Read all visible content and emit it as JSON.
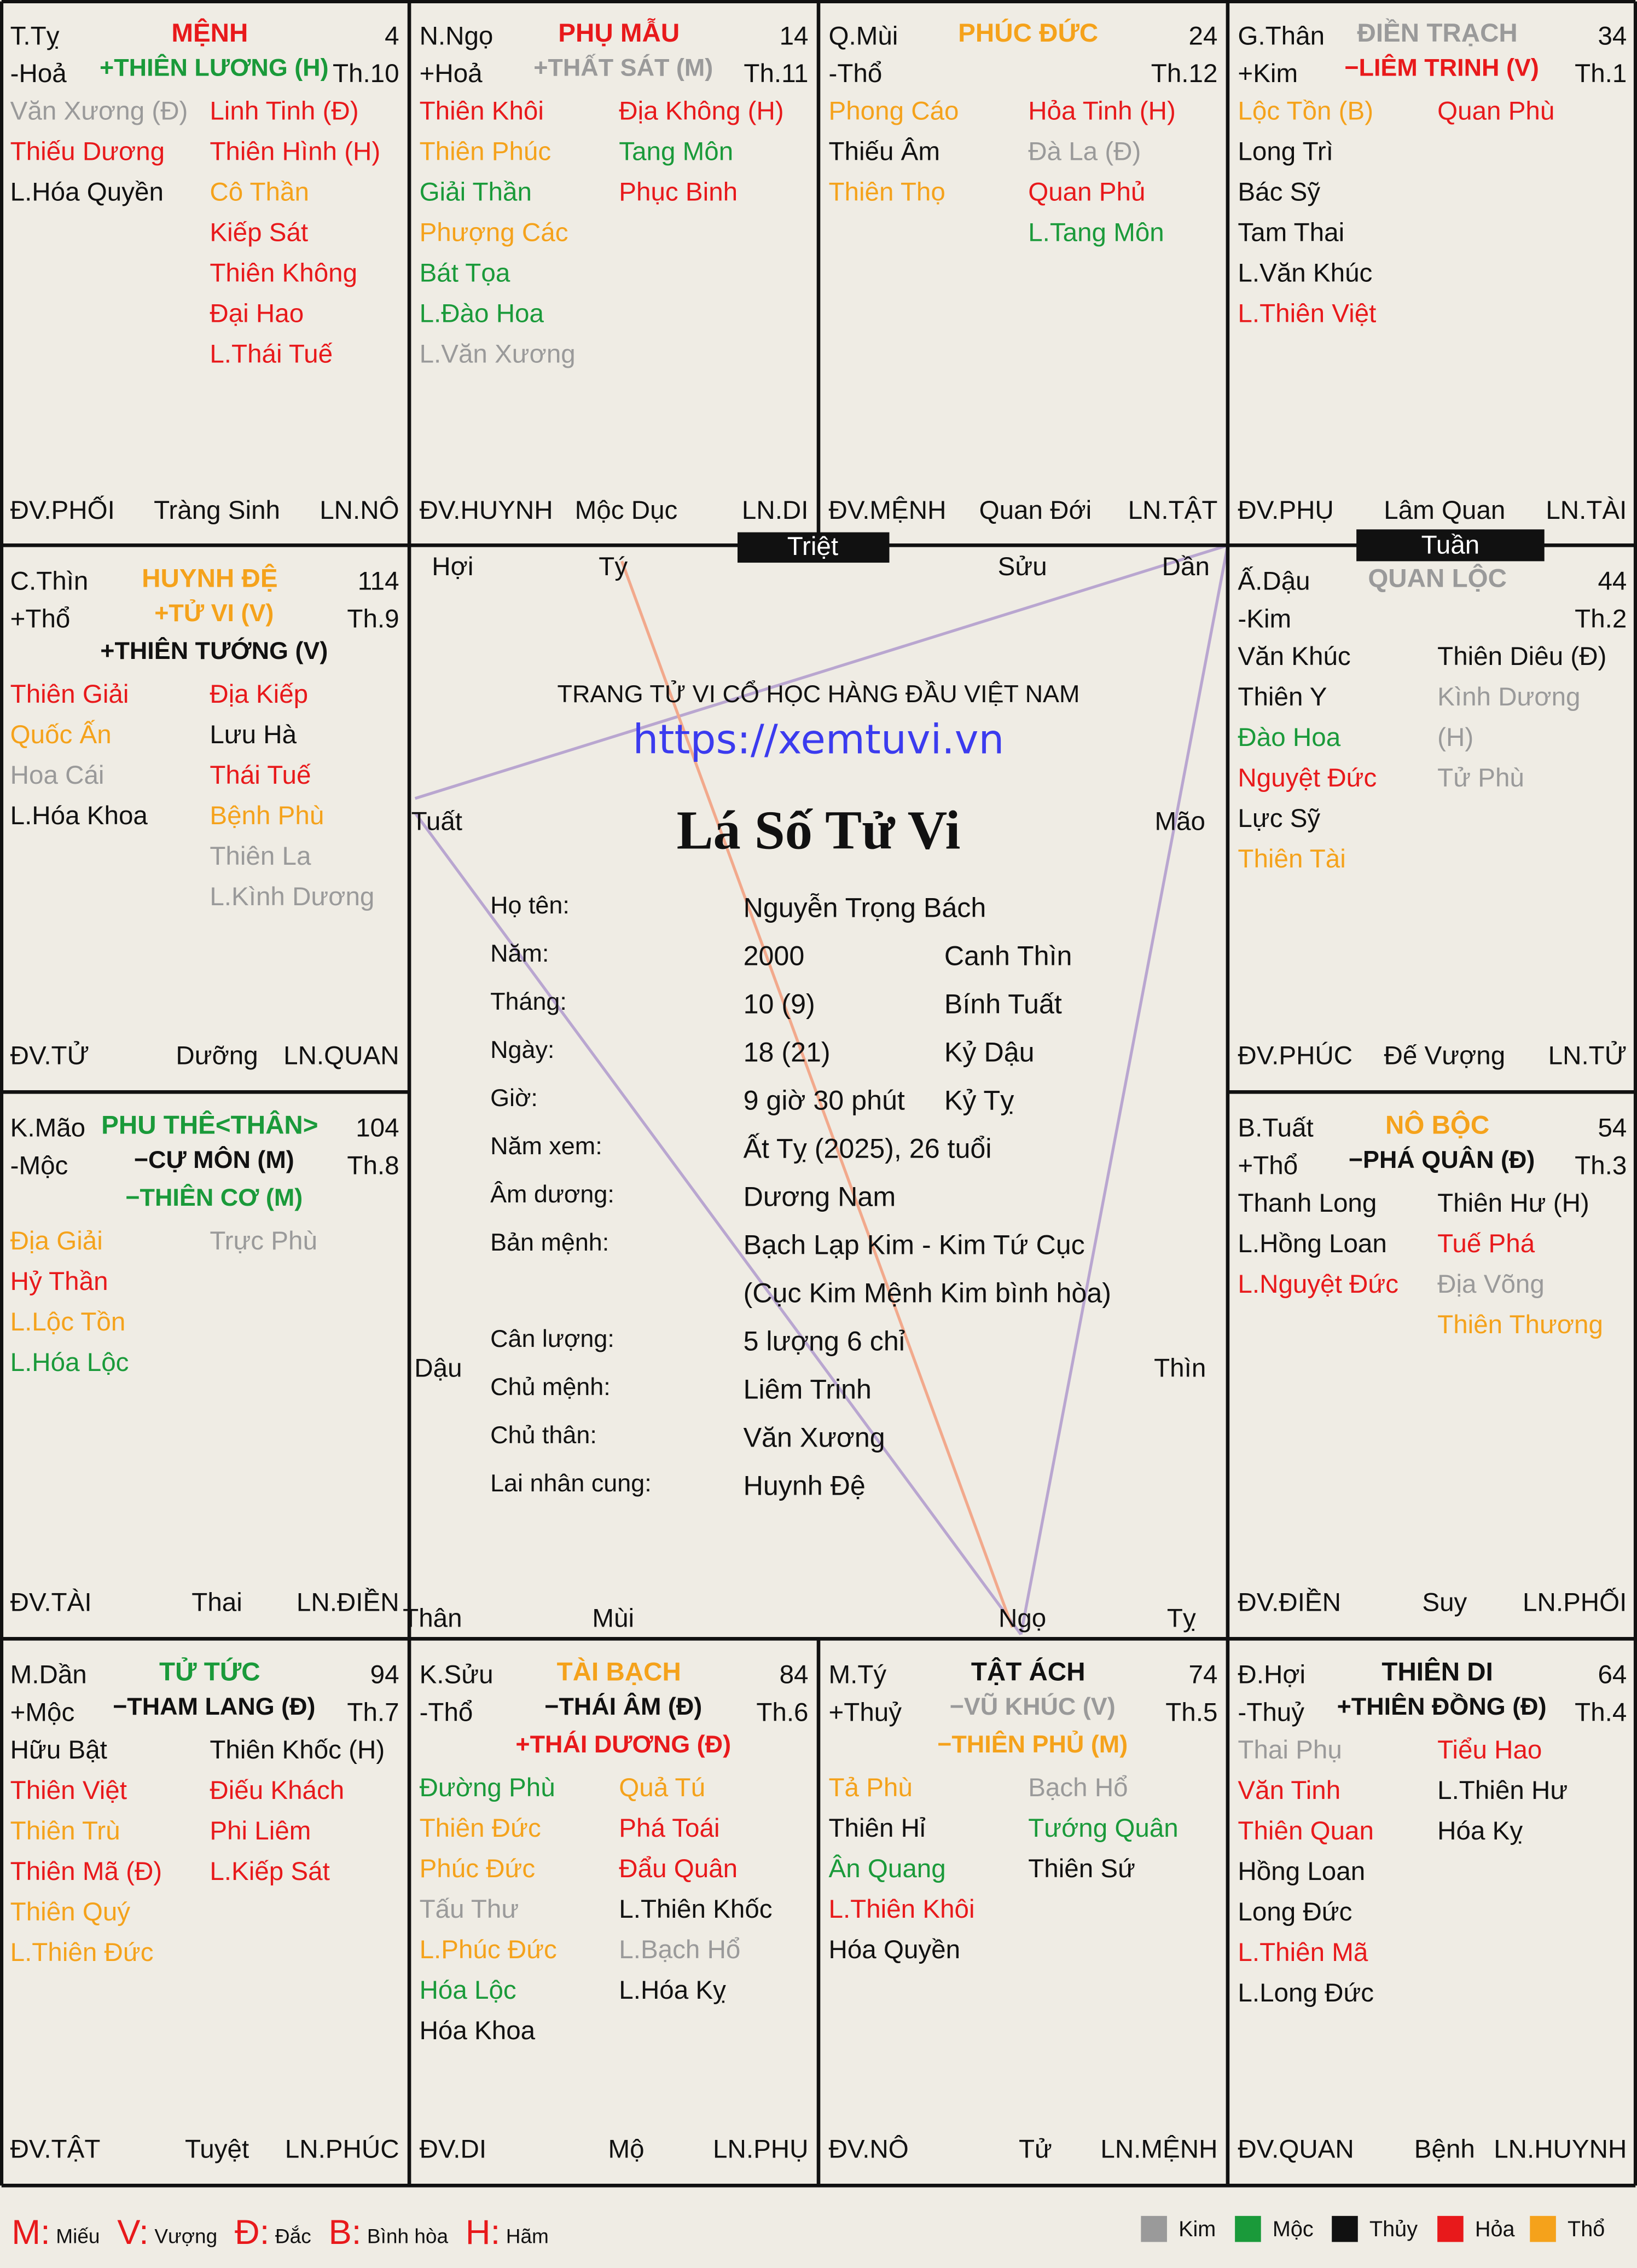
{
  "palaces": [
    {
      "branch": "T.Tỵ",
      "element": "-Hoả",
      "name": "MỆNH",
      "name_color": "#e8191b",
      "number": 4,
      "month": "Th.10",
      "main_stars": [
        {
          "text": "+THIÊN LƯƠNG (H)",
          "color": "#1a9a3a"
        }
      ],
      "left_stars": [
        {
          "text": "Văn Xương (Đ)",
          "color": "#9a9a9a"
        },
        {
          "text": "Thiếu Dương",
          "color": "#e8191b"
        },
        {
          "text": "L.Hóa Quyền",
          "color": "#111111"
        }
      ],
      "right_stars": [
        {
          "text": "Linh Tinh (Đ)",
          "color": "#e8191b"
        },
        {
          "text": "Thiên Hình (H)",
          "color": "#e8191b"
        },
        {
          "text": "Cô Thần",
          "color": "#f5a21b"
        },
        {
          "text": "Kiếp Sát",
          "color": "#e8191b"
        },
        {
          "text": "Thiên Không",
          "color": "#e8191b"
        },
        {
          "text": "Đại Hao",
          "color": "#e8191b"
        },
        {
          "text": "L.Thái Tuế",
          "color": "#e8191b"
        }
      ],
      "dai_van": "ĐV.PHỐI",
      "stage": "Tràng Sinh",
      "luu_nien": "LN.NÔ"
    },
    {
      "branch": "N.Ngọ",
      "element": "+Hoả",
      "name": "PHỤ MẪU",
      "name_color": "#e8191b",
      "number": 14,
      "month": "Th.11",
      "main_stars": [
        {
          "text": "+THẤT SÁT (M)",
          "color": "#9a9a9a"
        }
      ],
      "left_stars": [
        {
          "text": "Thiên Khôi",
          "color": "#e8191b"
        },
        {
          "text": "Thiên Phúc",
          "color": "#f5a21b"
        },
        {
          "text": "Giải Thần",
          "color": "#1a9a3a"
        },
        {
          "text": "Phượng Các",
          "color": "#f5a21b"
        },
        {
          "text": "Bát Tọa",
          "color": "#1a9a3a"
        },
        {
          "text": "L.Đào Hoa",
          "color": "#1a9a3a"
        },
        {
          "text": "L.Văn Xương",
          "color": "#9a9a9a"
        }
      ],
      "right_stars": [
        {
          "text": "Địa Không (H)",
          "color": "#e8191b"
        },
        {
          "text": "Tang Môn",
          "color": "#1a9a3a"
        },
        {
          "text": "Phục Binh",
          "color": "#e8191b"
        }
      ],
      "dai_van": "ĐV.HUYNH",
      "stage": "Mộc Dục",
      "luu_nien": "LN.DI"
    },
    {
      "branch": "Q.Mùi",
      "element": "-Thổ",
      "name": "PHÚC ĐỨC",
      "name_color": "#f5a21b",
      "number": 24,
      "month": "Th.12",
      "main_stars": [],
      "left_stars": [
        {
          "text": "Phong Cáo",
          "color": "#f5a21b"
        },
        {
          "text": "Thiếu Âm",
          "color": "#111111"
        },
        {
          "text": "Thiên Thọ",
          "color": "#f5a21b"
        }
      ],
      "right_stars": [
        {
          "text": "Hỏa Tinh (H)",
          "color": "#e8191b"
        },
        {
          "text": "Đà La (Đ)",
          "color": "#9a9a9a"
        },
        {
          "text": "Quan Phủ",
          "color": "#e8191b"
        },
        {
          "text": "L.Tang Môn",
          "color": "#1a9a3a"
        }
      ],
      "dai_van": "ĐV.MỆNH",
      "stage": "Quan Đới",
      "luu_nien": "LN.TẬT"
    },
    {
      "branch": "G.Thân",
      "element": "+Kim",
      "name": "ĐIỀN TRẠCH",
      "name_color": "#9a9a9a",
      "number": 34,
      "month": "Th.1",
      "main_stars": [
        {
          "text": "−LIÊM TRINH (V)",
          "color": "#e8191b"
        }
      ],
      "left_stars": [
        {
          "text": "Lộc Tồn (B)",
          "color": "#f5a21b"
        },
        {
          "text": "Long Trì",
          "color": "#111111"
        },
        {
          "text": "Bác Sỹ",
          "color": "#111111"
        },
        {
          "text": "Tam Thai",
          "color": "#111111"
        },
        {
          "text": "L.Văn Khúc",
          "color": "#111111"
        },
        {
          "text": "L.Thiên Việt",
          "color": "#e8191b"
        }
      ],
      "right_stars": [
        {
          "text": "Quan Phù",
          "color": "#e8191b"
        }
      ],
      "dai_van": "ĐV.PHỤ",
      "stage": "Lâm Quan",
      "luu_nien": "LN.TÀI"
    },
    {
      "branch": "C.Thìn",
      "element": "+Thổ",
      "name": "HUYNH ĐỆ",
      "name_color": "#f5a21b",
      "number": 114,
      "month": "Th.9",
      "main_stars": [
        {
          "text": "+TỬ VI (V)",
          "color": "#f5a21b"
        },
        {
          "text": "+THIÊN TƯỚNG (V)",
          "color": "#111111"
        }
      ],
      "left_stars": [
        {
          "text": "Thiên Giải",
          "color": "#e8191b"
        },
        {
          "text": "Quốc Ấn",
          "color": "#f5a21b"
        },
        {
          "text": "Hoa Cái",
          "color": "#9a9a9a"
        },
        {
          "text": "L.Hóa Khoa",
          "color": "#111111"
        }
      ],
      "right_stars": [
        {
          "text": "Địa Kiếp",
          "color": "#e8191b"
        },
        {
          "text": "Lưu Hà",
          "color": "#111111"
        },
        {
          "text": "Thái Tuế",
          "color": "#e8191b"
        },
        {
          "text": "Bệnh Phù",
          "color": "#f5a21b"
        },
        {
          "text": "Thiên La",
          "color": "#9a9a9a"
        },
        {
          "text": "L.Kình Dương",
          "color": "#9a9a9a"
        }
      ],
      "dai_van": "ĐV.TỬ",
      "stage": "Dưỡng",
      "luu_nien": "LN.QUAN"
    },
    {
      "branch": "Ấ.Dậu",
      "element": "-Kim",
      "name": "QUAN LỘC",
      "name_color": "#9a9a9a",
      "number": 44,
      "month": "Th.2",
      "main_stars": [],
      "left_stars": [
        {
          "text": "Văn Khúc",
          "color": "#111111"
        },
        {
          "text": "Thiên Y",
          "color": "#111111"
        },
        {
          "text": "Đào Hoa",
          "color": "#1a9a3a"
        },
        {
          "text": "Nguyệt Đức",
          "color": "#e8191b"
        },
        {
          "text": "Lực Sỹ",
          "color": "#111111"
        },
        {
          "text": "Thiên Tài",
          "color": "#f5a21b"
        }
      ],
      "right_stars": [
        {
          "text": "Thiên Diêu (Đ)",
          "color": "#111111"
        },
        {
          "text": "Kình Dương",
          "color": "#9a9a9a"
        },
        {
          "text": "(H)",
          "color": "#9a9a9a"
        },
        {
          "text": "Tử Phù",
          "color": "#9a9a9a"
        }
      ],
      "dai_van": "ĐV.PHÚC",
      "stage": "Đế Vượng",
      "luu_nien": "LN.TỬ"
    },
    {
      "branch": "K.Mão",
      "element": "-Mộc",
      "name": "PHU THÊ<THÂN>",
      "name_color": "#1a9a3a",
      "number": 104,
      "month": "Th.8",
      "main_stars": [
        {
          "text": "−CỰ MÔN (M)",
          "color": "#111111"
        },
        {
          "text": "−THIÊN CƠ (M)",
          "color": "#1a9a3a"
        }
      ],
      "left_stars": [
        {
          "text": "Địa Giải",
          "color": "#f5a21b"
        },
        {
          "text": "Hỷ Thần",
          "color": "#e8191b"
        },
        {
          "text": "L.Lộc Tồn",
          "color": "#f5a21b"
        },
        {
          "text": "L.Hóa Lộc",
          "color": "#1a9a3a"
        }
      ],
      "right_stars": [
        {
          "text": "Trực Phù",
          "color": "#9a9a9a"
        }
      ],
      "dai_van": "ĐV.TÀI",
      "stage": "Thai",
      "luu_nien": "LN.ĐIỀN"
    },
    {
      "branch": "B.Tuất",
      "element": "+Thổ",
      "name": "NÔ BỘC",
      "name_color": "#f5a21b",
      "number": 54,
      "month": "Th.3",
      "main_stars": [
        {
          "text": "−PHÁ QUÂN (Đ)",
          "color": "#111111"
        }
      ],
      "left_stars": [
        {
          "text": "Thanh Long",
          "color": "#111111"
        },
        {
          "text": "L.Hồng Loan",
          "color": "#111111"
        },
        {
          "text": "L.Nguyệt Đức",
          "color": "#e8191b"
        }
      ],
      "right_stars": [
        {
          "text": "Thiên Hư (H)",
          "color": "#111111"
        },
        {
          "text": "Tuế Phá",
          "color": "#e8191b"
        },
        {
          "text": "Địa Võng",
          "color": "#9a9a9a"
        },
        {
          "text": "Thiên Thương",
          "color": "#f5a21b"
        }
      ],
      "dai_van": "ĐV.ĐIỀN",
      "stage": "Suy",
      "luu_nien": "LN.PHỐI"
    },
    {
      "branch": "M.Dần",
      "element": "+Mộc",
      "name": "TỬ TỨC",
      "name_color": "#1a9a3a",
      "number": 94,
      "month": "Th.7",
      "main_stars": [
        {
          "text": "−THAM LANG (Đ)",
          "color": "#111111"
        }
      ],
      "left_stars": [
        {
          "text": "Hữu Bật",
          "color": "#111111"
        },
        {
          "text": "Thiên Việt",
          "color": "#e8191b"
        },
        {
          "text": "Thiên Trù",
          "color": "#f5a21b"
        },
        {
          "text": "Thiên Mã (Đ)",
          "color": "#e8191b"
        },
        {
          "text": "Thiên Quý",
          "color": "#f5a21b"
        },
        {
          "text": "L.Thiên Đức",
          "color": "#f5a21b"
        }
      ],
      "right_stars": [
        {
          "text": "Thiên Khốc (H)",
          "color": "#111111"
        },
        {
          "text": "Điếu Khách",
          "color": "#e8191b"
        },
        {
          "text": "Phi Liêm",
          "color": "#e8191b"
        },
        {
          "text": "L.Kiếp Sát",
          "color": "#e8191b"
        }
      ],
      "dai_van": "ĐV.TẬT",
      "stage": "Tuyệt",
      "luu_nien": "LN.PHÚC"
    },
    {
      "branch": "K.Sửu",
      "element": "-Thổ",
      "name": "TÀI BẠCH",
      "name_color": "#f5a21b",
      "number": 84,
      "month": "Th.6",
      "main_stars": [
        {
          "text": "−THÁI ÂM (Đ)",
          "color": "#111111"
        },
        {
          "text": "+THÁI DƯƠNG (Đ)",
          "color": "#e8191b"
        }
      ],
      "left_stars": [
        {
          "text": "Đường Phù",
          "color": "#1a9a3a"
        },
        {
          "text": "Thiên Đức",
          "color": "#f5a21b"
        },
        {
          "text": "Phúc Đức",
          "color": "#f5a21b"
        },
        {
          "text": "Tấu Thư",
          "color": "#9a9a9a"
        },
        {
          "text": "L.Phúc Đức",
          "color": "#f5a21b"
        },
        {
          "text": "Hóa Lộc",
          "color": "#1a9a3a"
        },
        {
          "text": "Hóa Khoa",
          "color": "#111111"
        }
      ],
      "right_stars": [
        {
          "text": "Quả Tú",
          "color": "#f5a21b"
        },
        {
          "text": "Phá Toái",
          "color": "#e8191b"
        },
        {
          "text": "Đẩu Quân",
          "color": "#e8191b"
        },
        {
          "text": "L.Thiên Khốc",
          "color": "#111111"
        },
        {
          "text": "L.Bạch Hổ",
          "color": "#9a9a9a"
        },
        {
          "text": "L.Hóa Kỵ",
          "color": "#111111"
        }
      ],
      "dai_van": "ĐV.DI",
      "stage": "Mộ",
      "luu_nien": "LN.PHỤ"
    },
    {
      "branch": "M.Tý",
      "element": "+Thuỷ",
      "name": "TẬT ÁCH",
      "name_color": "#111111",
      "number": 74,
      "month": "Th.5",
      "main_stars": [
        {
          "text": "−VŨ KHÚC (V)",
          "color": "#9a9a9a"
        },
        {
          "text": "−THIÊN PHỦ (M)",
          "color": "#f5a21b"
        }
      ],
      "left_stars": [
        {
          "text": "Tả Phù",
          "color": "#f5a21b"
        },
        {
          "text": "Thiên Hỉ",
          "color": "#111111"
        },
        {
          "text": "Ân Quang",
          "color": "#1a9a3a"
        },
        {
          "text": "L.Thiên Khôi",
          "color": "#e8191b"
        },
        {
          "text": "Hóa Quyền",
          "color": "#111111"
        }
      ],
      "right_stars": [
        {
          "text": "Bạch Hổ",
          "color": "#9a9a9a"
        },
        {
          "text": "Tướng Quân",
          "color": "#1a9a3a"
        },
        {
          "text": "Thiên Sứ",
          "color": "#111111"
        }
      ],
      "dai_van": "ĐV.NÔ",
      "stage": "Tử",
      "luu_nien": "LN.MỆNH"
    },
    {
      "branch": "Đ.Hợi",
      "element": "-Thuỷ",
      "name": "THIÊN DI",
      "name_color": "#111111",
      "number": 64,
      "month": "Th.4",
      "main_stars": [
        {
          "text": "+THIÊN ĐỒNG (Đ)",
          "color": "#111111"
        }
      ],
      "left_stars": [
        {
          "text": "Thai Phụ",
          "color": "#9a9a9a"
        },
        {
          "text": "Văn Tinh",
          "color": "#e8191b"
        },
        {
          "text": "Thiên Quan",
          "color": "#e8191b"
        },
        {
          "text": "Hồng Loan",
          "color": "#111111"
        },
        {
          "text": "Long Đức",
          "color": "#111111"
        },
        {
          "text": "L.Thiên Mã",
          "color": "#e8191b"
        },
        {
          "text": "L.Long Đức",
          "color": "#111111"
        }
      ],
      "right_stars": [
        {
          "text": "Tiểu Hao",
          "color": "#e8191b"
        },
        {
          "text": "L.Thiên Hư",
          "color": "#111111"
        },
        {
          "text": "Hóa Kỵ",
          "color": "#111111"
        }
      ],
      "dai_van": "ĐV.QUAN",
      "stage": "Bệnh",
      "luu_nien": "LN.HUYNH"
    }
  ],
  "center": {
    "heading": "TRANG TỬ VI CỔ HỌC HÀNG ĐẦU VIỆT NAM",
    "url": "https://xemtuvi.vn",
    "title": "Lá Số Tử Vi",
    "corners": [
      "Hợi",
      "Tý",
      "Sửu",
      "Dần",
      "Tuất",
      "Mão",
      "Dậu",
      "Thìn",
      "Thân",
      "Mùi",
      "Ngọ",
      "Tỵ"
    ],
    "triet": "Triệt",
    "tuan": "Tuần",
    "rows": [
      {
        "label": "Họ tên:",
        "value": [
          "Nguyễn Trọng Bách"
        ]
      },
      {
        "label": "Năm:",
        "value": [
          "2000"
        ],
        "extra": "Canh Thìn"
      },
      {
        "label": "Tháng:",
        "value": [
          "10 (9)"
        ],
        "extra": "Bính Tuất"
      },
      {
        "label": "Ngày:",
        "value": [
          "18 (21)"
        ],
        "extra": "Kỷ Dậu"
      },
      {
        "label": "Giờ:",
        "value": [
          "9 giờ 30 phút"
        ],
        "extra": "Kỷ Tỵ"
      },
      {
        "label": "Năm xem:",
        "value": [
          "Ất Tỵ (2025), 26 tuổi"
        ]
      },
      {
        "label": "Âm dương:",
        "value": [
          "Dương Nam"
        ]
      },
      {
        "label": "Bản mệnh:",
        "value": [
          "Bạch Lạp Kim - Kim Tứ Cục",
          "(Cục Kim Mệnh Kim bình hòa)"
        ]
      },
      {
        "label": "Cân lượng:",
        "value": [
          "5 lượng 6 chỉ"
        ]
      },
      {
        "label": "Chủ mệnh:",
        "value": [
          "Liêm Trinh"
        ]
      },
      {
        "label": "Chủ thân:",
        "value": [
          "Văn Xương"
        ]
      },
      {
        "label": "Lai nhân cung:",
        "value": [
          "Huynh Đệ"
        ]
      }
    ]
  },
  "legend": {
    "marks": [
      {
        "letter": "M:",
        "text": "Miếu"
      },
      {
        "letter": "V:",
        "text": "Vượng"
      },
      {
        "letter": "Đ:",
        "text": "Đắc"
      },
      {
        "letter": "B:",
        "text": "Bình hòa"
      },
      {
        "letter": "H:",
        "text": "Hãm"
      }
    ],
    "elements": [
      {
        "name": "Kim",
        "color": "#9a9a9a"
      },
      {
        "name": "Mộc",
        "color": "#1a9a3a"
      },
      {
        "name": "Thủy",
        "color": "#111111"
      },
      {
        "name": "Hỏa",
        "color": "#e8191b"
      },
      {
        "name": "Thổ",
        "color": "#f5a21b"
      }
    ]
  }
}
